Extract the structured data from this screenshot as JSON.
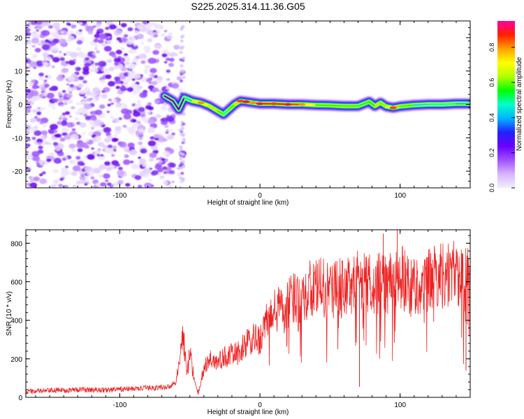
{
  "title": "S225.2025.314.11.36.G05",
  "colors": {
    "snr_line": "#ee2222",
    "scatter": "#7a2cf0",
    "colorbar": [
      "#f0f0ff",
      "#d8b4ff",
      "#a050ff",
      "#6a00ff",
      "#2222ff",
      "#00b4ff",
      "#00ffc8",
      "#00ff00",
      "#b4ff00",
      "#ffff00",
      "#ffa000",
      "#ff2000",
      "#ff00a0"
    ]
  },
  "chart_data": [
    {
      "type": "heatmap",
      "title": "S225.2025.314.11.36.G05",
      "xlabel": "Height of straight line (km)",
      "ylabel": "Frequency (Hz)",
      "xlim": [
        -167,
        150
      ],
      "ylim": [
        -25,
        25
      ],
      "x_ticks": [
        -100,
        0,
        100
      ],
      "y_ticks": [
        20,
        10,
        0,
        -10,
        -20
      ],
      "colorbar": {
        "label": "Normalized spectral amplitude",
        "range": [
          0,
          0.95
        ],
        "ticks": [
          "0.0",
          "0.2",
          "0.4",
          "0.6",
          "0.8"
        ]
      },
      "noise_region_x": [
        -167,
        -55
      ],
      "signal_track": {
        "x": [
          -68,
          -62,
          -58,
          -54,
          -48,
          -42,
          -36,
          -30,
          -26,
          -22,
          -18,
          -14,
          -10,
          -5,
          0,
          10,
          20,
          30,
          40,
          50,
          60,
          70,
          78,
          82,
          86,
          90,
          95,
          100,
          110,
          120,
          130,
          140,
          150
        ],
        "frequency_hz": [
          2.5,
          1.0,
          -1.5,
          2.0,
          1.0,
          0.5,
          -0.5,
          -2.0,
          -3.0,
          -1.5,
          0,
          1.0,
          0.8,
          0.5,
          0.2,
          0.2,
          0.0,
          0.0,
          -0.2,
          -0.3,
          -0.5,
          -0.5,
          0.8,
          -0.5,
          0.5,
          -0.6,
          -1.0,
          -0.6,
          -0.2,
          0.0,
          0.0,
          0.2,
          0.2
        ],
        "amplitude": [
          0.2,
          0.3,
          0.25,
          0.35,
          0.55,
          0.8,
          0.6,
          0.7,
          0.45,
          0.5,
          0.65,
          0.85,
          0.9,
          0.8,
          0.9,
          0.85,
          0.9,
          0.8,
          0.6,
          0.55,
          0.6,
          0.55,
          0.5,
          0.6,
          0.65,
          0.55,
          0.85,
          0.7,
          0.45,
          0.45,
          0.5,
          0.45,
          0.4
        ]
      }
    },
    {
      "type": "line",
      "xlabel": "Height of straight line (km)",
      "ylabel": "SNR (10 * v/v)",
      "xlim": [
        -167,
        150
      ],
      "ylim": [
        0,
        870
      ],
      "x_ticks": [
        -100,
        0,
        100
      ],
      "y_ticks": [
        0,
        200,
        400,
        600,
        800
      ],
      "series": [
        {
          "name": "SNR",
          "x": [
            -167,
            -150,
            -130,
            -110,
            -90,
            -75,
            -65,
            -60,
            -57,
            -55,
            -52,
            -50,
            -46,
            -44,
            -40,
            -35,
            -30,
            -25,
            -20,
            -15,
            -10,
            -5,
            0,
            5,
            10,
            15,
            20,
            25,
            30,
            40,
            50,
            60,
            70,
            80,
            90,
            100,
            110,
            120,
            130,
            140,
            150
          ],
          "values": [
            30,
            35,
            40,
            38,
            45,
            50,
            55,
            80,
            200,
            340,
            120,
            230,
            60,
            20,
            150,
            200,
            180,
            210,
            220,
            230,
            280,
            300,
            300,
            390,
            440,
            470,
            480,
            520,
            540,
            570,
            560,
            570,
            600,
            590,
            600,
            620,
            580,
            600,
            640,
            640,
            600
          ],
          "spikes": [
            {
              "x": 88,
              "value": 850
            },
            {
              "x": 98,
              "value": 870
            },
            {
              "x": 71,
              "value": 55
            },
            {
              "x": 147,
              "value": 140
            }
          ]
        }
      ]
    }
  ]
}
